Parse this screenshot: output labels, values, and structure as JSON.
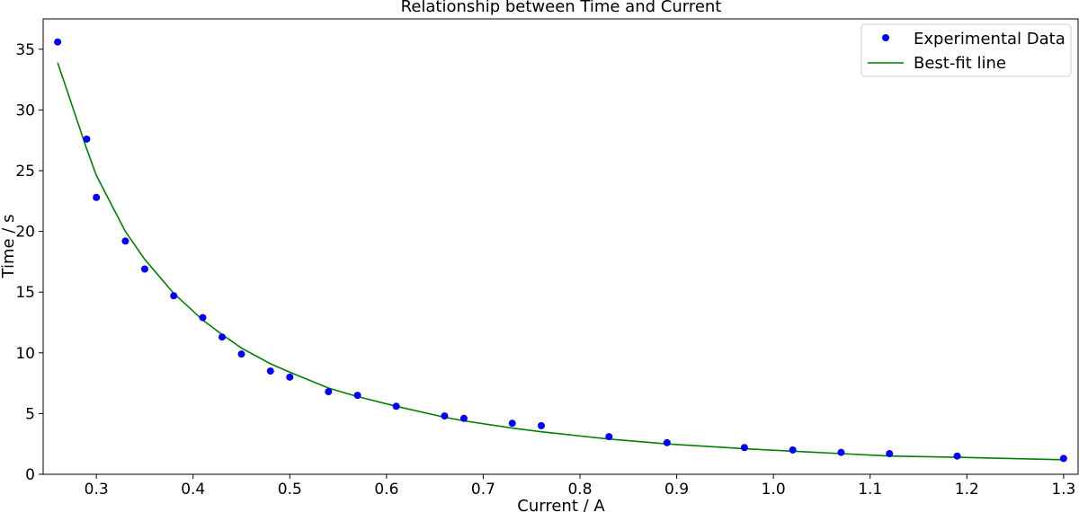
{
  "chart_data": {
    "type": "scatter",
    "title": "Relationship between Time and Current",
    "xlabel": "Current / A",
    "ylabel": "Time / s",
    "xlim": [
      0.245,
      1.315
    ],
    "ylim": [
      0,
      37.5
    ],
    "x_ticks": [
      0.3,
      0.4,
      0.5,
      0.6,
      0.7,
      0.8,
      0.9,
      1.0,
      1.1,
      1.2,
      1.3
    ],
    "x_tick_labels": [
      "0.3",
      "0.4",
      "0.5",
      "0.6",
      "0.7",
      "0.8",
      "0.9",
      "1.0",
      "1.1",
      "1.2",
      "1.3"
    ],
    "y_ticks": [
      0,
      5,
      10,
      15,
      20,
      25,
      30,
      35
    ],
    "y_tick_labels": [
      "0",
      "5",
      "10",
      "15",
      "20",
      "25",
      "30",
      "35"
    ],
    "grid": false,
    "legend_position": "top-right",
    "series": [
      {
        "name": "Experimental Data",
        "kind": "points",
        "color": "#0000ff",
        "x": [
          0.26,
          0.29,
          0.3,
          0.33,
          0.35,
          0.38,
          0.41,
          0.43,
          0.45,
          0.48,
          0.5,
          0.54,
          0.57,
          0.61,
          0.66,
          0.68,
          0.73,
          0.76,
          0.83,
          0.89,
          0.97,
          1.02,
          1.07,
          1.12,
          1.19,
          1.3
        ],
        "y": [
          35.6,
          27.6,
          22.8,
          19.2,
          16.9,
          14.7,
          12.9,
          11.3,
          9.9,
          8.5,
          8.0,
          6.8,
          6.5,
          5.6,
          4.8,
          4.6,
          4.2,
          4.0,
          3.1,
          2.6,
          2.2,
          2.0,
          1.8,
          1.7,
          1.5,
          1.3
        ]
      },
      {
        "name": "Best-fit line",
        "kind": "line",
        "color": "#008000",
        "x": [
          0.26,
          0.29,
          0.3,
          0.33,
          0.35,
          0.38,
          0.41,
          0.43,
          0.45,
          0.48,
          0.5,
          0.54,
          0.57,
          0.61,
          0.66,
          0.68,
          0.73,
          0.76,
          0.83,
          0.89,
          0.97,
          1.02,
          1.07,
          1.12,
          1.19,
          1.3
        ],
        "y": [
          33.9,
          26.8,
          24.6,
          20.0,
          17.7,
          14.9,
          12.7,
          11.5,
          10.4,
          9.1,
          8.4,
          7.1,
          6.4,
          5.6,
          4.7,
          4.4,
          3.8,
          3.5,
          2.9,
          2.5,
          2.1,
          1.9,
          1.7,
          1.5,
          1.4,
          1.2
        ]
      }
    ]
  }
}
